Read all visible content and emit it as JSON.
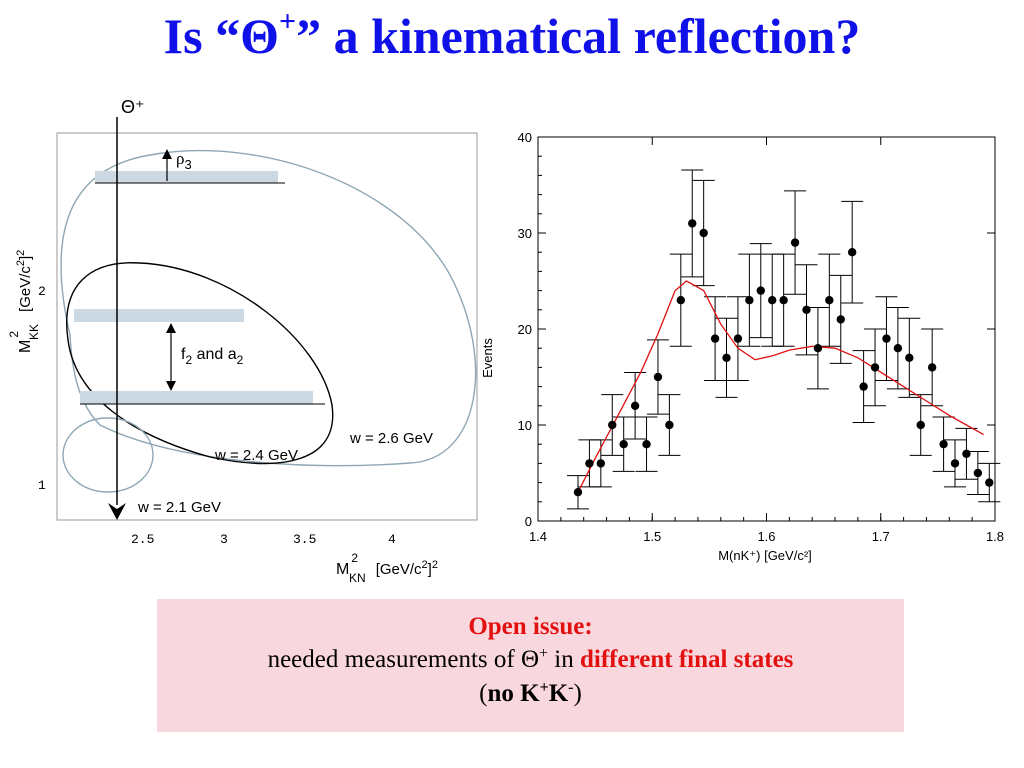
{
  "title": {
    "pre": "Is “Θ",
    "sup": "+",
    "post": "” a kinematical reflection?"
  },
  "dalitz": {
    "theta_label": "Θ⁺",
    "rho_label": "ρ",
    "rho_sub": "3",
    "f2_a2": {
      "f": "f",
      "sub1": "2",
      "and": " and a",
      "sub2": "2"
    },
    "w_labels": [
      "w = 2.6 GeV",
      "w = 2.4 GeV",
      "w = 2.1 GeV"
    ],
    "x_ticks": [
      "2.5",
      "3",
      "3.5",
      "4"
    ],
    "y_ticks": [
      "2",
      "1"
    ],
    "xlabel": {
      "main": "M",
      "sup": "2",
      "sub": "KN",
      "unit": "[GeV/c",
      "unit_sup": "2",
      "unit_end": "]",
      "unit_end_sup": "2"
    },
    "ylabel": {
      "main": "M",
      "sup": "2",
      "sub": "KK",
      "unit": "[GeV/c",
      "unit_sup": "2",
      "unit_end": "]",
      "unit_end_sup": "2"
    }
  },
  "chart_data": {
    "type": "scatter",
    "xlabel": "M(nK⁺)  [GeV/c²]",
    "ylabel": "Events",
    "xlim": [
      1.4,
      1.8
    ],
    "ylim": [
      0,
      40
    ],
    "x_ticks": [
      "1.4",
      "1.5",
      "1.6",
      "1.7",
      "1.8"
    ],
    "y_ticks": [
      "0",
      "10",
      "20",
      "30",
      "40"
    ],
    "series": [
      {
        "points": [
          {
            "x": 1.435,
            "y": 3
          },
          {
            "x": 1.445,
            "y": 6
          },
          {
            "x": 1.455,
            "y": 6
          },
          {
            "x": 1.465,
            "y": 10
          },
          {
            "x": 1.475,
            "y": 8
          },
          {
            "x": 1.485,
            "y": 12
          },
          {
            "x": 1.495,
            "y": 8
          },
          {
            "x": 1.505,
            "y": 15
          },
          {
            "x": 1.515,
            "y": 10
          },
          {
            "x": 1.525,
            "y": 23
          },
          {
            "x": 1.535,
            "y": 31
          },
          {
            "x": 1.545,
            "y": 30
          },
          {
            "x": 1.555,
            "y": 19
          },
          {
            "x": 1.565,
            "y": 17
          },
          {
            "x": 1.575,
            "y": 19
          },
          {
            "x": 1.585,
            "y": 23
          },
          {
            "x": 1.595,
            "y": 24
          },
          {
            "x": 1.605,
            "y": 23
          },
          {
            "x": 1.615,
            "y": 23
          },
          {
            "x": 1.625,
            "y": 29
          },
          {
            "x": 1.635,
            "y": 22
          },
          {
            "x": 1.645,
            "y": 18
          },
          {
            "x": 1.655,
            "y": 23
          },
          {
            "x": 1.665,
            "y": 21
          },
          {
            "x": 1.675,
            "y": 28
          },
          {
            "x": 1.685,
            "y": 14
          },
          {
            "x": 1.695,
            "y": 16
          },
          {
            "x": 1.705,
            "y": 19
          },
          {
            "x": 1.715,
            "y": 18
          },
          {
            "x": 1.725,
            "y": 17
          },
          {
            "x": 1.735,
            "y": 10
          },
          {
            "x": 1.745,
            "y": 16
          },
          {
            "x": 1.755,
            "y": 8
          },
          {
            "x": 1.765,
            "y": 6
          },
          {
            "x": 1.775,
            "y": 7
          },
          {
            "x": 1.785,
            "y": 5
          },
          {
            "x": 1.795,
            "y": 4
          }
        ]
      },
      {
        "type": "line",
        "color": "#e31010",
        "points": [
          {
            "x": 1.435,
            "y": 3
          },
          {
            "x": 1.45,
            "y": 6.5
          },
          {
            "x": 1.47,
            "y": 11
          },
          {
            "x": 1.49,
            "y": 15.5
          },
          {
            "x": 1.505,
            "y": 19.5
          },
          {
            "x": 1.52,
            "y": 24
          },
          {
            "x": 1.53,
            "y": 25
          },
          {
            "x": 1.545,
            "y": 24
          },
          {
            "x": 1.56,
            "y": 20.5
          },
          {
            "x": 1.575,
            "y": 18
          },
          {
            "x": 1.59,
            "y": 16.8
          },
          {
            "x": 1.605,
            "y": 17.2
          },
          {
            "x": 1.62,
            "y": 17.8
          },
          {
            "x": 1.64,
            "y": 18.2
          },
          {
            "x": 1.66,
            "y": 18
          },
          {
            "x": 1.68,
            "y": 17
          },
          {
            "x": 1.7,
            "y": 15.5
          },
          {
            "x": 1.72,
            "y": 14
          },
          {
            "x": 1.74,
            "y": 12.5
          },
          {
            "x": 1.76,
            "y": 11
          },
          {
            "x": 1.775,
            "y": 10
          },
          {
            "x": 1.79,
            "y": 9
          }
        ]
      }
    ]
  },
  "callout": {
    "heading": "Open issue:",
    "line2_pre": "needed measurements of Θ",
    "line2_sup": "+",
    "line2_mid": " in ",
    "line2_red": "different final states",
    "line3_open": "(",
    "line3_bold_k": "no K",
    "line3_sup1": "+",
    "line3_k2": "K",
    "line3_sup2": "-",
    "line3_close": ")"
  },
  "colors": {
    "title": "#1010e8",
    "accent_red": "#e31010",
    "callout_bg": "#f9d7de",
    "band": "#ccd9e2",
    "outer_contour": "#8fa7b4"
  }
}
